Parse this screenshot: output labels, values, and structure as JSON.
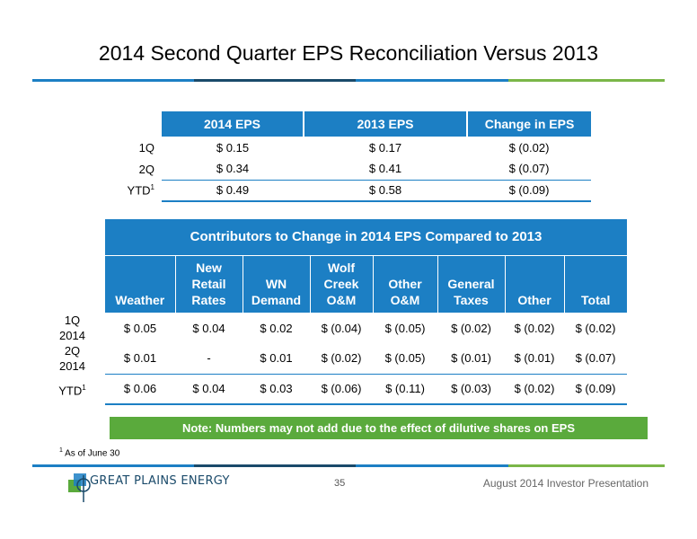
{
  "title": "2014 Second Quarter EPS Reconciliation Versus 2013",
  "colors": {
    "blue": "#1c7fc4",
    "green": "#5aaa3c",
    "navy": "#1a4a6a"
  },
  "eps_table": {
    "headers": [
      "2014 EPS",
      "2013 EPS",
      "Change in EPS"
    ],
    "rows": [
      {
        "label": "1Q",
        "sup": "",
        "values": [
          "$  0.15",
          "$  0.17",
          "$  (0.02)"
        ]
      },
      {
        "label": "2Q",
        "sup": "",
        "values": [
          "$  0.34",
          "$  0.41",
          "$  (0.07)"
        ]
      },
      {
        "label": "YTD",
        "sup": "1",
        "values": [
          "$  0.49",
          "$  0.58",
          "$  (0.09)"
        ]
      }
    ]
  },
  "contrib_table": {
    "heading": "Contributors to Change in 2014 EPS Compared to 2013",
    "columns": [
      [
        "Weather"
      ],
      [
        "New",
        "Retail",
        "Rates"
      ],
      [
        "WN",
        "Demand"
      ],
      [
        "Wolf",
        "Creek",
        "O&M"
      ],
      [
        "Other",
        "O&M"
      ],
      [
        "General",
        "Taxes"
      ],
      [
        "Other"
      ],
      [
        "Total"
      ]
    ],
    "rows": [
      {
        "label": [
          "1Q",
          "2014"
        ],
        "sup": "",
        "values": [
          "$  0.05",
          "$  0.04",
          "$  0.02",
          "$  (0.04)",
          "$  (0.05)",
          "$  (0.02)",
          "$  (0.02)",
          "$  (0.02)"
        ]
      },
      {
        "label": [
          "2Q",
          "2014"
        ],
        "sup": "",
        "values": [
          "$  0.01",
          "-",
          "$  0.01",
          "$  (0.02)",
          "$  (0.05)",
          "$  (0.01)",
          "$  (0.01)",
          "$  (0.07)"
        ]
      },
      {
        "label": [
          "YTD",
          ""
        ],
        "sup": "1",
        "values": [
          "$  0.06",
          "$  0.04",
          "$  0.03",
          "$  (0.06)",
          "$  (0.11)",
          "$  (0.03)",
          "$  (0.02)",
          "$  (0.09)"
        ]
      }
    ]
  },
  "note": "Note: Numbers may not add due to the effect of dilutive shares on EPS",
  "footnote": {
    "marker": "1",
    "text": "As of June 30"
  },
  "footer": {
    "logo_text": "GREAT PLAINS ENERGY",
    "page_number": "35",
    "presentation": "August 2014 Investor Presentation"
  }
}
